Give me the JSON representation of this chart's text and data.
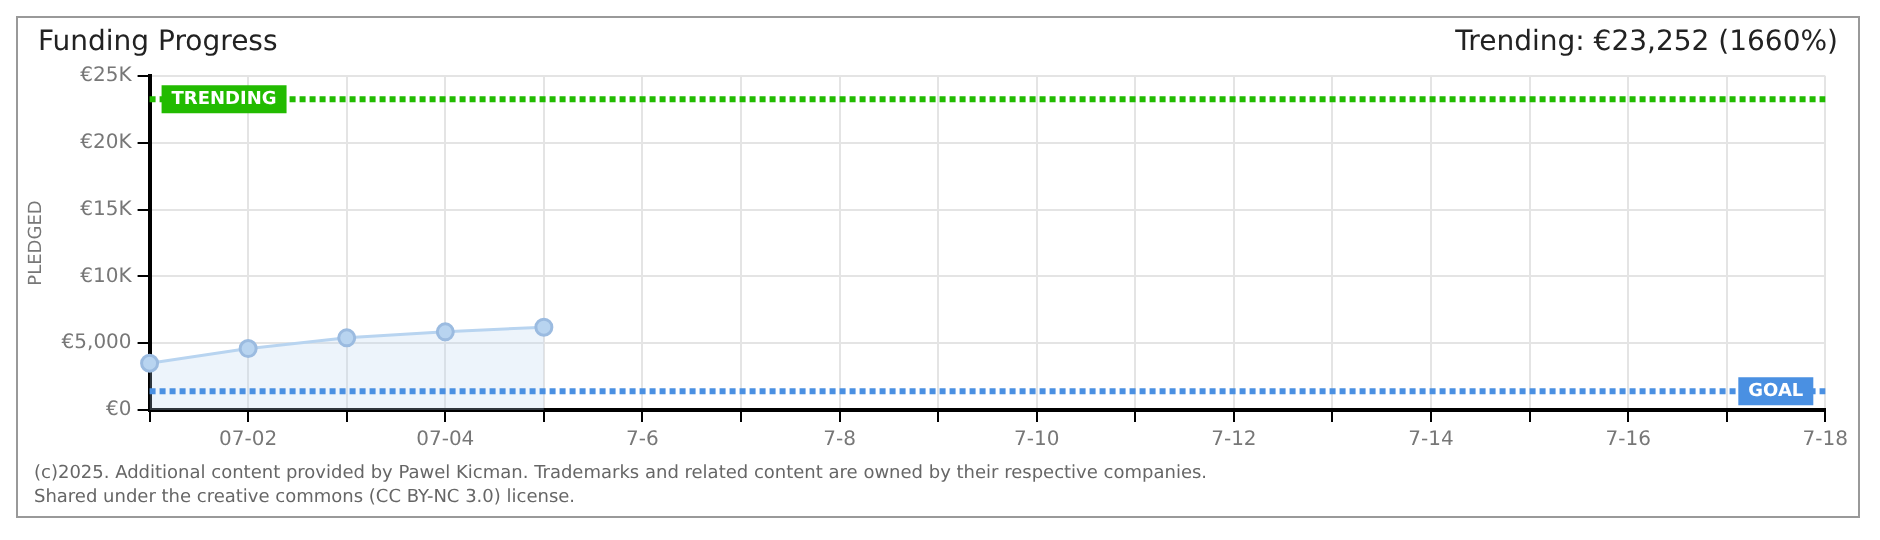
{
  "chart_data": {
    "type": "area",
    "title": "Funding Progress",
    "subtitle": "Trending: €23,252 (1660%)",
    "ylabel": "PLEDGED",
    "categories": [
      null,
      "07-02",
      null,
      "07-04",
      null,
      "7-6",
      null,
      "7-8",
      null,
      "7-10",
      null,
      "7-12",
      null,
      "7-14",
      null,
      "7-16",
      null,
      "7-18"
    ],
    "series": [
      {
        "color": "#b8d4f0",
        "values": [
          3500,
          4600,
          5400,
          5850,
          6200,
          null,
          null,
          null,
          null,
          null,
          null,
          null,
          null,
          null,
          null,
          null,
          null,
          null
        ]
      }
    ],
    "ylim": [
      0,
      25000
    ],
    "yticks": [
      {
        "value": 0,
        "label": "€0"
      },
      {
        "value": 5000,
        "label": "€5,000"
      },
      {
        "value": 10000,
        "label": "€10K"
      },
      {
        "value": 15000,
        "label": "€15K"
      },
      {
        "value": 20000,
        "label": "€20K"
      },
      {
        "value": 25000,
        "label": "€25K"
      }
    ],
    "ref_lines": [
      {
        "axis": "y",
        "value": 23252,
        "label": "TRENDING",
        "color": "#22bb00",
        "line_style": "dotted"
      },
      {
        "axis": "y",
        "value": 1400,
        "label": "GOAL",
        "color": "#4a90e2",
        "line_style": "dotted"
      }
    ],
    "grid": true,
    "marker": "circle",
    "legend": false,
    "annotations": [
      "(c)2025. Additional content provided by Pawel Kicman. Trademarks and related content are owned by their respective companies.",
      "Shared under the creative commons (CC BY-NC 3.0) license."
    ]
  }
}
